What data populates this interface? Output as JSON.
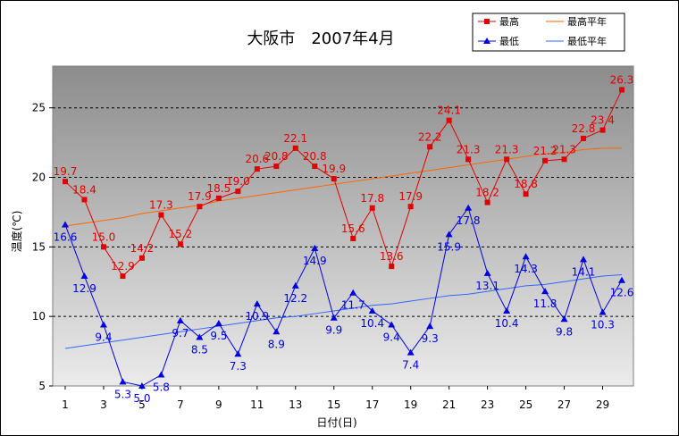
{
  "chart_data": {
    "type": "line",
    "title": "大阪市　2007年4月",
    "xlabel": "日付(日)",
    "ylabel": "温度(℃)",
    "ylim": [
      5,
      28
    ],
    "y_ticks": [
      5,
      10,
      15,
      20,
      25
    ],
    "x_ticks": [
      1,
      3,
      5,
      7,
      9,
      11,
      13,
      15,
      17,
      19,
      21,
      23,
      25,
      27,
      29
    ],
    "x": [
      1,
      2,
      3,
      4,
      5,
      6,
      7,
      8,
      9,
      10,
      11,
      12,
      13,
      14,
      15,
      16,
      17,
      18,
      19,
      20,
      21,
      22,
      23,
      24,
      25,
      26,
      27,
      28,
      29,
      30
    ],
    "grid": "horizontal dashed",
    "legend_position": "top-right",
    "series": [
      {
        "name": "最高",
        "color": "#e00000",
        "marker": "square",
        "values": [
          19.7,
          18.4,
          15.0,
          12.9,
          14.2,
          17.3,
          15.2,
          17.9,
          18.5,
          19.0,
          20.6,
          20.8,
          22.1,
          20.8,
          19.9,
          15.6,
          17.8,
          13.6,
          17.9,
          22.2,
          24.1,
          21.3,
          18.2,
          21.3,
          18.8,
          21.2,
          21.3,
          22.8,
          23.4,
          26.3
        ],
        "labels": [
          "19.7",
          "18.4",
          "15.0",
          "12.9",
          "14.2",
          "17.3",
          "15.2",
          "17.9",
          "18.5",
          "19.0",
          "20.6",
          "20.8",
          "22.1",
          "20.8",
          "19.9",
          "15.6",
          "17.8",
          "13.6",
          "17.9",
          "22.2",
          "24.1",
          "21.3",
          "18.2",
          "21.3",
          "18.8",
          "21.2",
          "21.3",
          "22.8",
          "23.4",
          "26.3"
        ]
      },
      {
        "name": "最低",
        "color": "#0000e0",
        "marker": "triangle",
        "values": [
          16.6,
          12.9,
          9.4,
          5.3,
          5.0,
          5.8,
          9.7,
          8.5,
          9.5,
          7.3,
          10.9,
          8.9,
          12.2,
          14.9,
          9.9,
          11.7,
          10.4,
          9.4,
          7.4,
          9.3,
          15.9,
          17.8,
          13.1,
          10.4,
          14.3,
          11.8,
          9.8,
          14.1,
          10.3,
          12.6
        ],
        "labels": [
          "16.6",
          "12.9",
          "9.4",
          "5.3",
          "5.0",
          "5.8",
          "9.7",
          "8.5",
          "9.5",
          "7.3",
          "10.9",
          "8.9",
          "12.2",
          "14.9",
          "9.9",
          "11.7",
          "10.4",
          "9.4",
          "7.4",
          "9.3",
          "15.9",
          "17.8",
          "13.1",
          "10.4",
          "14.3",
          "11.8",
          "9.8",
          "14.1",
          "10.3",
          "12.6"
        ]
      },
      {
        "name": "最高平年",
        "color": "#ff6600",
        "marker": "none",
        "values": [
          16.5,
          16.7,
          16.9,
          17.1,
          17.4,
          17.6,
          17.8,
          18.0,
          18.3,
          18.5,
          18.7,
          18.9,
          19.1,
          19.3,
          19.5,
          19.7,
          19.9,
          20.1,
          20.3,
          20.5,
          20.7,
          20.9,
          21.1,
          21.3,
          21.5,
          21.7,
          21.8,
          22.0,
          22.1,
          22.1
        ]
      },
      {
        "name": "最低平年",
        "color": "#3366ff",
        "marker": "none",
        "values": [
          7.7,
          7.9,
          8.1,
          8.3,
          8.5,
          8.7,
          8.9,
          9.1,
          9.3,
          9.5,
          9.7,
          9.9,
          10.0,
          10.2,
          10.4,
          10.6,
          10.8,
          10.9,
          11.1,
          11.3,
          11.5,
          11.6,
          11.8,
          12.0,
          12.2,
          12.3,
          12.5,
          12.7,
          12.9,
          13.0
        ]
      }
    ]
  }
}
